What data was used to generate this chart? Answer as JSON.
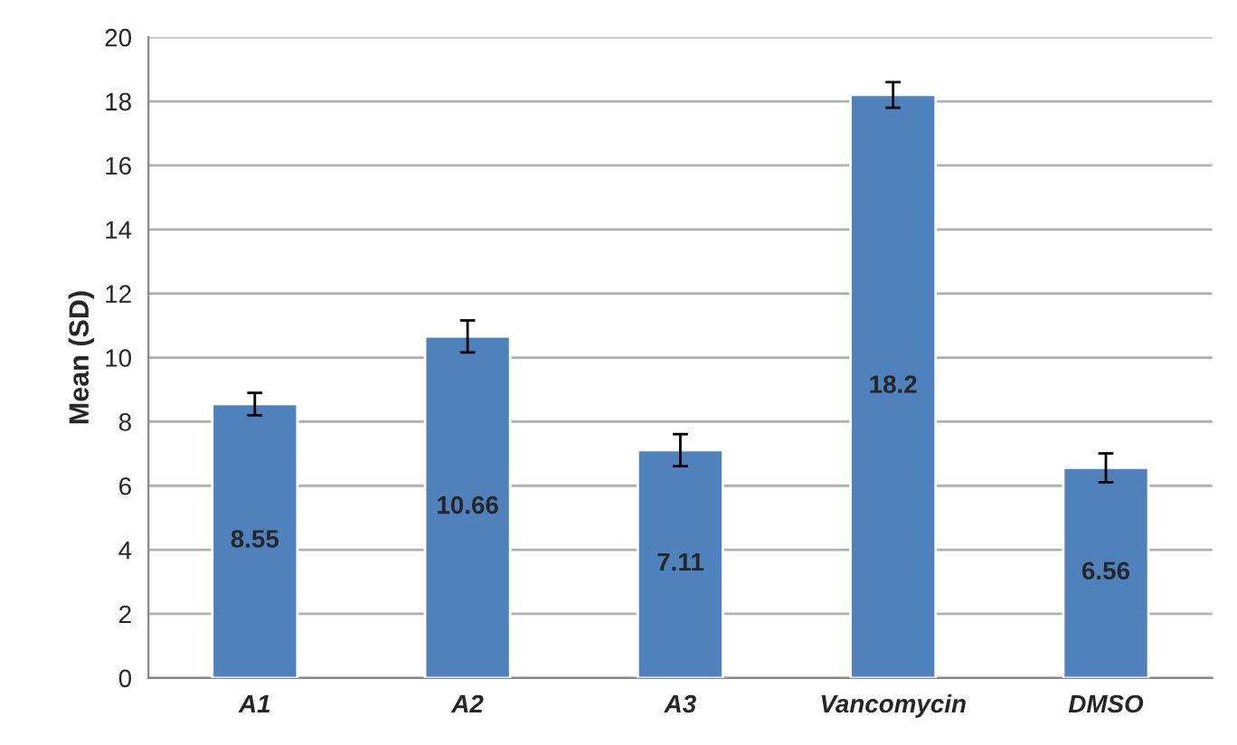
{
  "chart_data": {
    "type": "bar",
    "ylabel": "Mean (SD)",
    "categories": [
      "A1",
      "A2",
      "A3",
      "Vancomycin",
      "DMSO"
    ],
    "values": [
      8.55,
      10.66,
      7.11,
      18.2,
      6.56
    ],
    "errors": [
      0.35,
      0.5,
      0.5,
      0.4,
      0.45
    ],
    "color": "#4f81bd",
    "data_labels": true,
    "ylim": [
      0,
      20
    ],
    "yticks": [
      0,
      2,
      4,
      6,
      8,
      10,
      12,
      14,
      16,
      18,
      20
    ],
    "grid": "y"
  }
}
